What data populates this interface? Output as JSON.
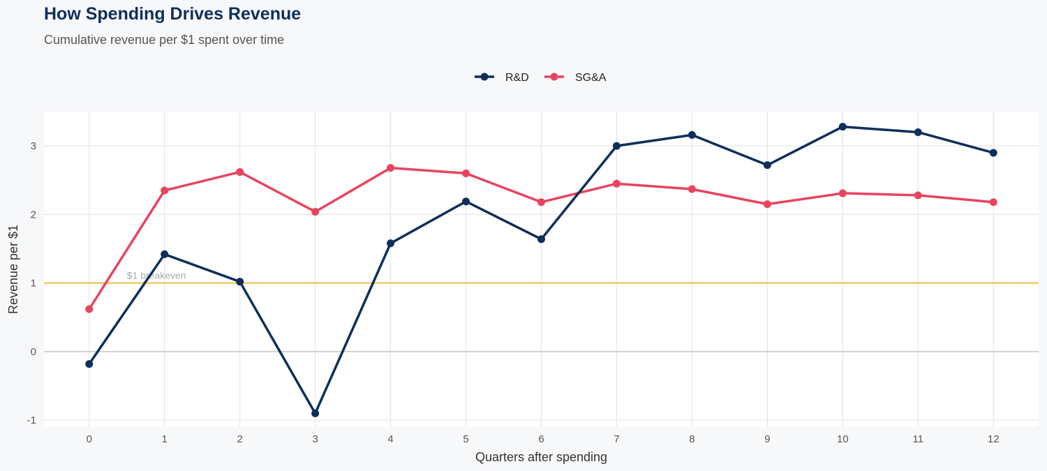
{
  "chart_data": {
    "type": "line",
    "title": "How Spending Drives Revenue",
    "subtitle": "Cumulative revenue per $1 spent over time",
    "xlabel": "Quarters after spending",
    "ylabel": "Revenue per $1",
    "x": [
      0,
      1,
      2,
      3,
      4,
      5,
      6,
      7,
      8,
      9,
      10,
      11,
      12
    ],
    "xlim": [
      -0.6,
      12.6
    ],
    "ylim": [
      -1.1,
      3.5
    ],
    "yticks": [
      -1,
      0,
      1,
      2,
      3
    ],
    "grid": true,
    "legend_position": "top",
    "series": [
      {
        "name": "R&D",
        "color": "#0d2f5a",
        "values": [
          -0.18,
          1.42,
          1.02,
          -0.9,
          1.58,
          2.19,
          1.64,
          3.0,
          3.16,
          2.72,
          3.28,
          3.2,
          2.9
        ]
      },
      {
        "name": "SG&A",
        "color": "#e8445e",
        "values": [
          0.62,
          2.35,
          2.62,
          2.04,
          2.68,
          2.6,
          2.18,
          2.45,
          2.37,
          2.15,
          2.31,
          2.28,
          2.18
        ]
      }
    ],
    "reference_line": {
      "y": 1,
      "label": "$1 breakeven",
      "color": "#f5c453"
    }
  }
}
